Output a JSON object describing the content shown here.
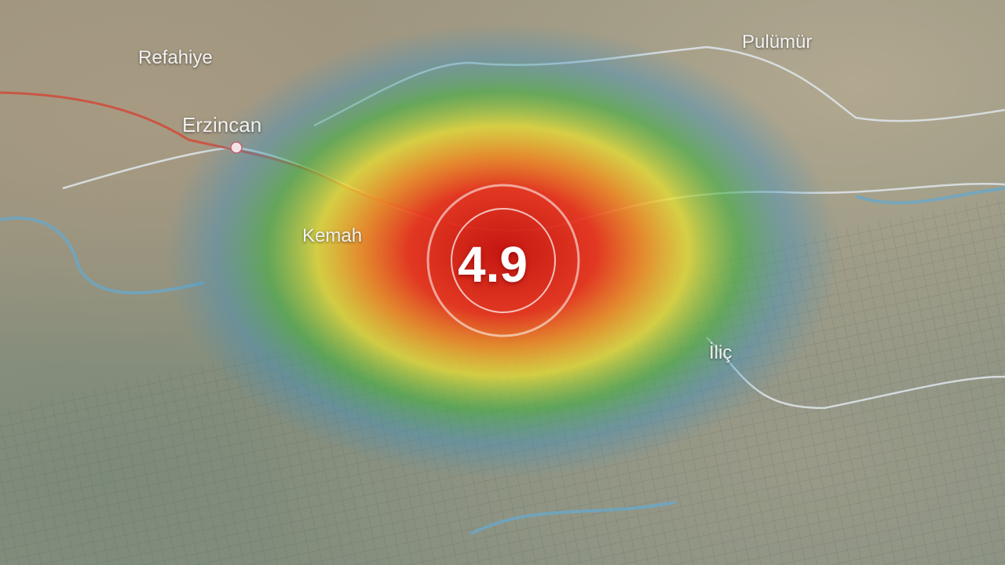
{
  "map": {
    "places": [
      {
        "name": "Refahiye"
      },
      {
        "name": "Erzincan"
      },
      {
        "name": "Pulümür"
      },
      {
        "name": "Kemah"
      },
      {
        "name": "İliç"
      }
    ],
    "epicenter": {
      "magnitude": "4.9"
    },
    "colors": {
      "intensity_high": "#e0201a",
      "intensity_mid": "#f0e020",
      "intensity_low": "#30b040",
      "intensity_outer": "#3a90c0",
      "road_main": "#d04a3a",
      "rivers": "#6aa8c8"
    }
  }
}
